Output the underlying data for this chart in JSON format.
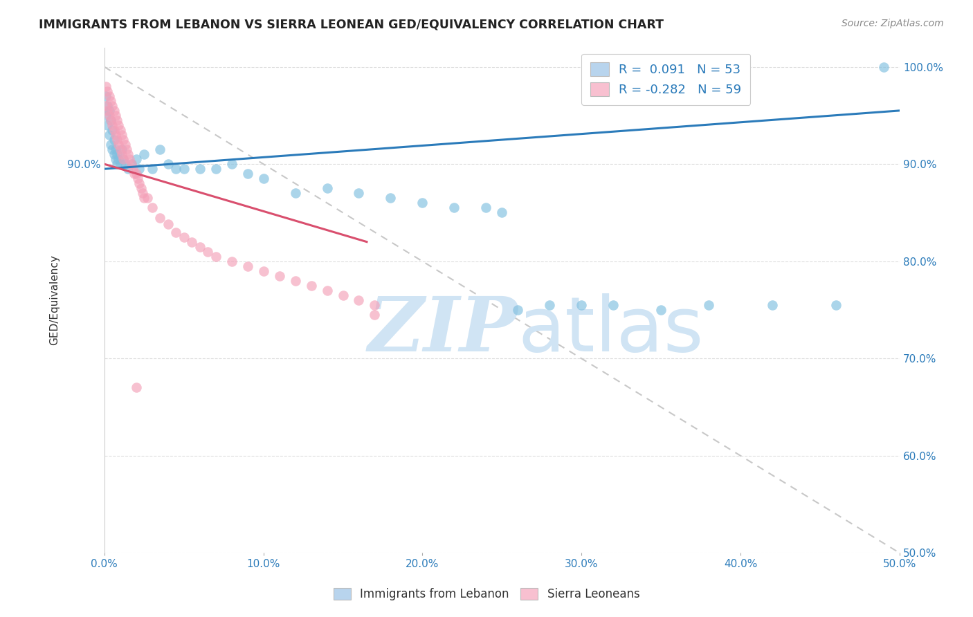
{
  "title": "IMMIGRANTS FROM LEBANON VS SIERRA LEONEAN GED/EQUIVALENCY CORRELATION CHART",
  "source": "Source: ZipAtlas.com",
  "ylabel_label": "GED/Equivalency",
  "xlim": [
    0.0,
    0.5
  ],
  "ylim": [
    0.5,
    1.02
  ],
  "ytick_right": [
    0.5,
    0.6,
    0.7,
    0.8,
    0.9,
    1.0
  ],
  "ytick_right_labels": [
    "50.0%",
    "60.0%",
    "70.0%",
    "80.0%",
    "90.0%",
    "100.0%"
  ],
  "ytick_left": [
    0.9
  ],
  "ytick_left_labels": [
    "90.0%"
  ],
  "xtick_positions": [
    0.0,
    0.1,
    0.2,
    0.3,
    0.4,
    0.5
  ],
  "xtick_labels": [
    "0.0%",
    "10.0%",
    "20.0%",
    "30.0%",
    "40.0%",
    "50.0%"
  ],
  "color_blue": "#7fbfdf",
  "color_pink": "#f4a0b8",
  "legend_box_color_blue": "#b8d4ed",
  "legend_box_color_pink": "#f8c0d0",
  "trendline_blue_color": "#2b7bba",
  "trendline_pink_color": "#d94f6e",
  "trendline_dash_color": "#c8c8c8",
  "watermark_color": "#d0e4f4",
  "grid_color": "#dddddd",
  "blue_x": [
    0.001,
    0.001,
    0.002,
    0.002,
    0.003,
    0.003,
    0.004,
    0.004,
    0.005,
    0.005,
    0.006,
    0.006,
    0.007,
    0.007,
    0.008,
    0.008,
    0.009,
    0.01,
    0.011,
    0.012,
    0.013,
    0.015,
    0.017,
    0.02,
    0.022,
    0.025,
    0.03,
    0.035,
    0.04,
    0.045,
    0.05,
    0.06,
    0.07,
    0.08,
    0.09,
    0.1,
    0.12,
    0.14,
    0.16,
    0.18,
    0.2,
    0.22,
    0.24,
    0.25,
    0.26,
    0.28,
    0.3,
    0.32,
    0.35,
    0.38,
    0.42,
    0.46,
    0.49
  ],
  "blue_y": [
    0.97,
    0.95,
    0.96,
    0.94,
    0.955,
    0.93,
    0.945,
    0.92,
    0.935,
    0.915,
    0.925,
    0.91,
    0.915,
    0.905,
    0.91,
    0.9,
    0.905,
    0.9,
    0.915,
    0.905,
    0.9,
    0.895,
    0.9,
    0.905,
    0.895,
    0.91,
    0.895,
    0.915,
    0.9,
    0.895,
    0.895,
    0.895,
    0.895,
    0.9,
    0.89,
    0.885,
    0.87,
    0.875,
    0.87,
    0.865,
    0.86,
    0.855,
    0.855,
    0.85,
    0.75,
    0.755,
    0.755,
    0.755,
    0.75,
    0.755,
    0.755,
    0.755,
    1.0
  ],
  "pink_x": [
    0.001,
    0.001,
    0.002,
    0.002,
    0.003,
    0.003,
    0.004,
    0.004,
    0.005,
    0.005,
    0.006,
    0.006,
    0.007,
    0.007,
    0.008,
    0.008,
    0.009,
    0.009,
    0.01,
    0.01,
    0.011,
    0.011,
    0.012,
    0.012,
    0.013,
    0.014,
    0.015,
    0.016,
    0.017,
    0.018,
    0.019,
    0.02,
    0.021,
    0.022,
    0.023,
    0.024,
    0.025,
    0.027,
    0.03,
    0.035,
    0.04,
    0.045,
    0.05,
    0.055,
    0.06,
    0.065,
    0.07,
    0.08,
    0.09,
    0.1,
    0.11,
    0.12,
    0.13,
    0.14,
    0.15,
    0.16,
    0.17,
    0.02,
    0.17
  ],
  "pink_y": [
    0.98,
    0.96,
    0.975,
    0.955,
    0.97,
    0.95,
    0.965,
    0.945,
    0.96,
    0.94,
    0.955,
    0.935,
    0.95,
    0.93,
    0.945,
    0.925,
    0.94,
    0.92,
    0.935,
    0.915,
    0.93,
    0.91,
    0.925,
    0.905,
    0.92,
    0.915,
    0.91,
    0.905,
    0.9,
    0.895,
    0.89,
    0.89,
    0.885,
    0.88,
    0.875,
    0.87,
    0.865,
    0.865,
    0.855,
    0.845,
    0.838,
    0.83,
    0.825,
    0.82,
    0.815,
    0.81,
    0.805,
    0.8,
    0.795,
    0.79,
    0.785,
    0.78,
    0.775,
    0.77,
    0.765,
    0.76,
    0.755,
    0.67,
    0.745
  ],
  "blue_trendline_x": [
    0.0,
    0.5
  ],
  "blue_trendline_y": [
    0.895,
    0.955
  ],
  "pink_trendline_x": [
    0.0,
    0.165
  ],
  "pink_trendline_y": [
    0.9,
    0.82
  ]
}
